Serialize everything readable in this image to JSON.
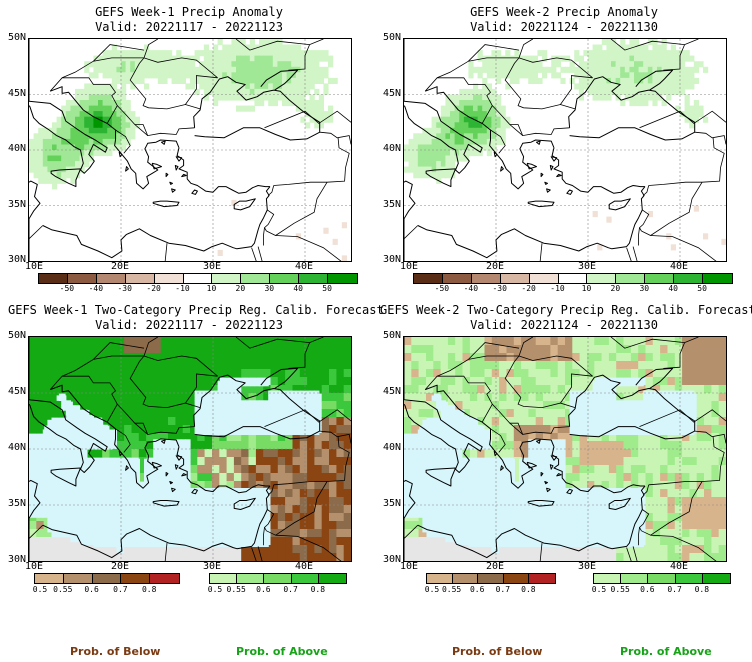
{
  "panels": [
    {
      "id": "w1-anom",
      "title": "GEFS Week-1 Precip Anomaly",
      "valid": "Valid: 20221117 - 20221123"
    },
    {
      "id": "w2-anom",
      "title": "GEFS Week-2 Precip Anomaly",
      "valid": "Valid: 20221124 - 20221130"
    },
    {
      "id": "w1-prob",
      "title": "GEFS Week-1 Two-Category Precip Reg. Calib. Forecast",
      "valid": "Valid: 20221117 - 20221123"
    },
    {
      "id": "w2-prob",
      "title": "GEFS Week-2 Two-Category Precip Reg. Calib. Forecast",
      "valid": "Valid: 20221124 - 20221130"
    }
  ],
  "axes": {
    "lat_labels": [
      "50N",
      "45N",
      "40N",
      "35N",
      "30N"
    ],
    "lon_labels": [
      "10E",
      "20E",
      "30E",
      "40E"
    ]
  },
  "anomaly_colorbar": {
    "labels": [
      "-50",
      "-40",
      "-30",
      "-20",
      "-10",
      "10",
      "20",
      "30",
      "40",
      "50"
    ],
    "colors": [
      "#5a2d16",
      "#8c5a41",
      "#b48770",
      "#d8b7a4",
      "#f0e0d6",
      "#ffffff",
      "#d2f5c8",
      "#a0e896",
      "#64d25a",
      "#2db432",
      "#009600"
    ]
  },
  "below_colorbar": {
    "labels": [
      "0.5",
      "0.55",
      "0.6",
      "0.7",
      "0.8"
    ],
    "colors": [
      "#d8b48c",
      "#b4906c",
      "#8c6b4a",
      "#8b4513",
      "#b22222"
    ]
  },
  "above_colorbar": {
    "labels": [
      "0.5",
      "0.55",
      "0.6",
      "0.7",
      "0.8"
    ],
    "colors": [
      "#c8f5b4",
      "#a0eb8c",
      "#78dc64",
      "#3cc83c",
      "#14aa14"
    ]
  },
  "legend": {
    "below": "Prob. of Below",
    "above": "Prob. of Above"
  },
  "colors": {
    "sea": "#d6f6fc",
    "sea_anom": "#ffffff",
    "nodata": "#e6e6e6",
    "below_label": "#7a3b12",
    "above_label": "#17a317"
  }
}
